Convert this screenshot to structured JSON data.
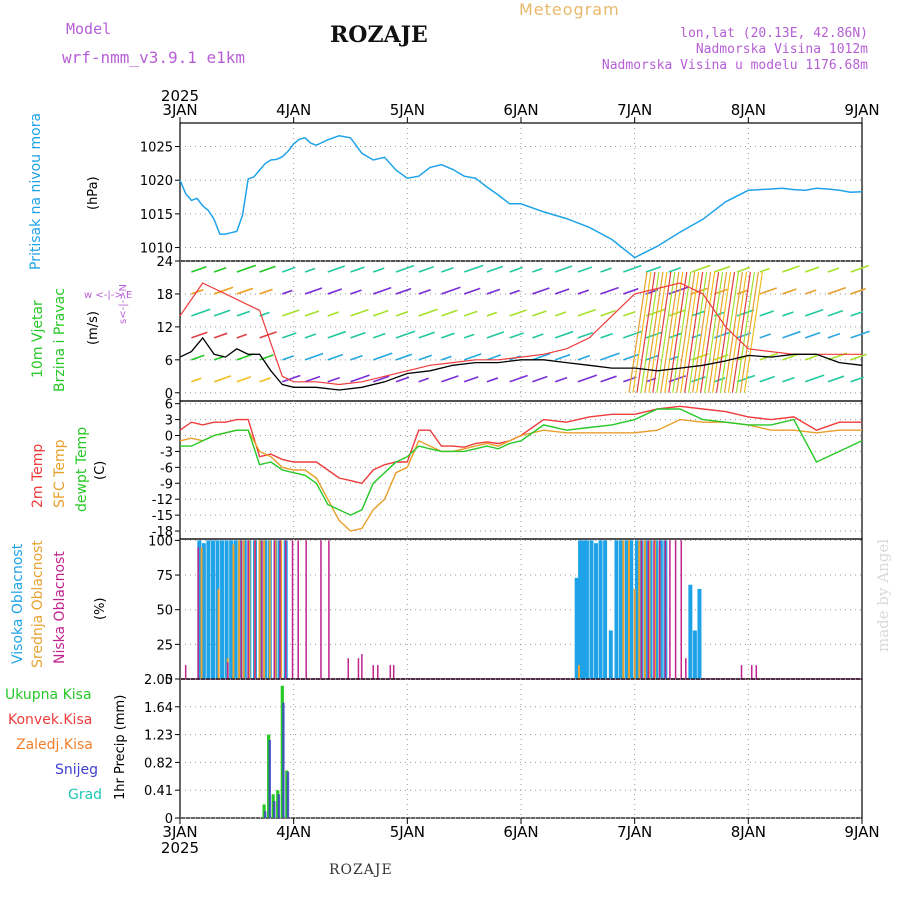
{
  "header": {
    "model_label": "Model",
    "model_name": "wrf-nmm_v3.9.1 e1km",
    "title": "ROZAJE",
    "meteogram_label": "Meteogram",
    "lonlat": "lon,lat (20.13E, 42.86N)",
    "elevation": "Nadmorska Visina 1012m",
    "model_elevation": "Nadmorska Visina u modelu 1176.68m"
  },
  "footer": {
    "station": "ROZAJE",
    "credit": "made by Angel"
  },
  "colors": {
    "pressure": "#1fa3e8",
    "temp2m": "#ee3b3b",
    "sfc": "#e89f2c",
    "dewpt": "#27c827",
    "high_cloud": "#1fa3e8",
    "mid_cloud": "#e8a232",
    "low_cloud": "#c0238e",
    "precip_total": "#27c827",
    "convective": "#ee3b3b",
    "freezing": "#f07f2c",
    "snow": "#3f3fd0",
    "graupel": "#1fc8b4",
    "wind_speed": "#000000",
    "gust": "#ee3b3b",
    "panel_labels": "#1fa3e8",
    "wind_labels": "#27c827",
    "compass": "#b65fd6"
  },
  "chart_data": [
    {
      "type": "line",
      "id": "pressure",
      "x_labels_top": [
        "3JAN",
        "4JAN",
        "5JAN",
        "6JAN",
        "7JAN",
        "8JAN",
        "9JAN"
      ],
      "top_year": "2025",
      "ylabel_rot": "Pritisak na nivou mora",
      "unit": "(hPa)",
      "ylim": [
        1008,
        1028.5
      ],
      "yticks": [
        1010,
        1015,
        1020,
        1025
      ],
      "x_days": [
        0,
        0.05,
        0.1,
        0.15,
        0.2,
        0.25,
        0.3,
        0.35,
        0.4,
        0.45,
        0.5,
        0.55,
        0.6,
        0.65,
        0.7,
        0.75,
        0.8,
        0.85,
        0.9,
        0.95,
        1.0,
        1.05,
        1.1,
        1.15,
        1.2,
        1.25,
        1.3,
        1.4,
        1.5,
        1.6,
        1.7,
        1.8,
        1.9,
        2.0,
        2.1,
        2.2,
        2.3,
        2.4,
        2.5,
        2.6,
        2.7,
        2.8,
        2.9,
        3.0,
        3.2,
        3.4,
        3.6,
        3.8,
        4.0,
        4.2,
        4.4,
        4.6,
        4.8,
        5.0,
        5.1,
        5.2,
        5.3,
        5.4,
        5.5,
        5.6,
        5.7,
        5.8,
        5.9,
        6.0
      ],
      "values": [
        1020,
        1018,
        1017,
        1017.3,
        1016.2,
        1015.5,
        1014.2,
        1012,
        1012,
        1012.2,
        1012.4,
        1014.8,
        1020.2,
        1020.5,
        1021.5,
        1022.5,
        1023,
        1023.1,
        1023.5,
        1024.3,
        1025.4,
        1026.1,
        1026.3,
        1025.5,
        1025.2,
        1025.6,
        1026,
        1026.6,
        1026.3,
        1024,
        1023,
        1023.4,
        1021.5,
        1020.3,
        1020.6,
        1021.9,
        1022.3,
        1021.6,
        1020.6,
        1020.3,
        1019,
        1017.8,
        1016.5,
        1016.5,
        1015.3,
        1014.3,
        1013,
        1011.2,
        1008.5,
        1010.2,
        1012.3,
        1014.2,
        1016.8,
        1018.5,
        1018.6,
        1018.7,
        1018.8,
        1018.6,
        1018.5,
        1018.8,
        1018.7,
        1018.5,
        1018.2,
        1018.3
      ],
      "grid": true
    },
    {
      "type": "line",
      "id": "wind",
      "ylabel_rot_1": "10m Vjetar",
      "ylabel_rot_2": "Brzina i Pravac",
      "unit": "(m/s)",
      "compass": "w <-|-> E",
      "compass_vertical": "s<-|->N",
      "ylim": [
        -1.5,
        24
      ],
      "yticks": [
        0,
        6,
        12,
        18,
        24
      ],
      "x_days": [
        0,
        0.1,
        0.2,
        0.3,
        0.4,
        0.5,
        0.6,
        0.7,
        0.8,
        0.9,
        1.0,
        1.2,
        1.4,
        1.6,
        1.8,
        2.0,
        2.2,
        2.4,
        2.6,
        2.8,
        3.0,
        3.2,
        3.4,
        3.6,
        3.8,
        4.0,
        4.2,
        4.4,
        4.6,
        4.8,
        5.0,
        5.2,
        5.4,
        5.6,
        5.8,
        6.0
      ],
      "wind_speed": [
        6.5,
        7.5,
        10,
        7,
        6.5,
        8,
        7,
        7,
        4,
        1.5,
        1,
        1,
        0.5,
        1,
        2,
        3.5,
        4,
        5,
        5.5,
        5.5,
        6,
        6,
        5.5,
        5,
        4.5,
        4.5,
        4,
        4.5,
        5,
        5.8,
        6.8,
        6.5,
        7,
        7,
        5.5,
        5
      ],
      "gust": [
        14,
        17,
        20,
        19,
        18,
        17,
        16,
        15,
        9,
        3,
        2,
        2,
        1.5,
        2,
        3,
        4,
        5,
        5.5,
        6,
        6,
        6.5,
        7,
        8,
        10,
        14,
        18,
        19,
        20,
        18,
        12,
        8,
        7.5,
        7,
        7,
        7,
        7
      ],
      "grid": true
    },
    {
      "type": "line",
      "id": "temperature",
      "ylabel_rot_1": "2m Temp",
      "ylabel_rot_2": "SFC Temp",
      "ylabel_rot_3": "dewpt Temp",
      "unit": "(C)",
      "ylim": [
        -19.5,
        6.5
      ],
      "yticks": [
        6,
        3,
        0,
        -3,
        -6,
        -9,
        -12,
        -15,
        -18
      ],
      "x_days": [
        0,
        0.1,
        0.2,
        0.3,
        0.4,
        0.5,
        0.6,
        0.7,
        0.8,
        0.9,
        1.0,
        1.1,
        1.2,
        1.3,
        1.4,
        1.5,
        1.6,
        1.7,
        1.8,
        1.9,
        2.0,
        2.1,
        2.2,
        2.3,
        2.4,
        2.5,
        2.6,
        2.7,
        2.8,
        2.9,
        3.0,
        3.2,
        3.4,
        3.6,
        3.8,
        4.0,
        4.2,
        4.4,
        4.6,
        4.8,
        5.0,
        5.2,
        5.4,
        5.6,
        5.8,
        6.0
      ],
      "temp2m": [
        1,
        2.5,
        2,
        2.5,
        2.5,
        3,
        3,
        -4,
        -3.5,
        -4.5,
        -5,
        -5,
        -5,
        -6.5,
        -8,
        -8.5,
        -9,
        -6.5,
        -5.5,
        -5,
        -5,
        1,
        1,
        -2,
        -2,
        -2.2,
        -1.5,
        -1.2,
        -1.5,
        -1,
        0,
        3,
        2.5,
        3.5,
        4,
        4,
        5,
        5.5,
        5,
        4.5,
        3.5,
        3,
        3.5,
        1,
        2.5,
        2.5
      ],
      "sfc": [
        -1,
        -0.5,
        -1,
        0,
        0.5,
        1,
        1,
        -3,
        -4,
        -6,
        -6.5,
        -6.5,
        -8,
        -12,
        -16,
        -18,
        -17.5,
        -14,
        -12,
        -7,
        -6,
        -1,
        -2,
        -3,
        -3,
        -2.5,
        -2,
        -1.5,
        -2,
        -1,
        0,
        1,
        0.5,
        0.5,
        0.5,
        0.5,
        1,
        3,
        2.5,
        2.5,
        2,
        1,
        1,
        0.5,
        1,
        1
      ],
      "dewpt": [
        -2,
        -2,
        -1,
        0,
        0.5,
        1,
        1,
        -5.5,
        -5,
        -6.5,
        -7,
        -7.5,
        -9,
        -13,
        -14,
        -15,
        -14,
        -9,
        -7,
        -5,
        -4,
        -2,
        -2.5,
        -3,
        -3,
        -3,
        -2.5,
        -2,
        -2.5,
        -1.5,
        -1,
        2,
        1,
        1.5,
        2,
        3,
        5,
        5,
        3,
        2.5,
        2,
        2,
        3,
        -5,
        -3,
        -1
      ],
      "grid": true
    },
    {
      "type": "bar",
      "id": "clouds",
      "ylabel_rot_1": "Visoka Oblacnost",
      "ylabel_rot_2": "Srednja Oblacnost",
      "ylabel_rot_3": "Niska Oblacnost",
      "unit": "(%)",
      "ylim": [
        0,
        101
      ],
      "yticks": [
        0,
        25,
        50,
        75,
        100
      ],
      "high": [
        {
          "x": 0.17,
          "v": 100
        },
        {
          "x": 0.21,
          "v": 98
        },
        {
          "x": 0.25,
          "v": 100
        },
        {
          "x": 0.29,
          "v": 100
        },
        {
          "x": 0.33,
          "v": 100
        },
        {
          "x": 0.37,
          "v": 100
        },
        {
          "x": 0.41,
          "v": 100
        },
        {
          "x": 0.45,
          "v": 100
        },
        {
          "x": 0.49,
          "v": 100
        },
        {
          "x": 0.53,
          "v": 100
        },
        {
          "x": 0.57,
          "v": 100
        },
        {
          "x": 0.61,
          "v": 100
        },
        {
          "x": 0.66,
          "v": 100
        },
        {
          "x": 0.71,
          "v": 100
        },
        {
          "x": 0.75,
          "v": 100
        },
        {
          "x": 0.79,
          "v": 100
        },
        {
          "x": 0.84,
          "v": 100
        },
        {
          "x": 0.88,
          "v": 100
        },
        {
          "x": 0.93,
          "v": 100
        },
        {
          "x": 3.49,
          "v": 73
        },
        {
          "x": 3.52,
          "v": 100
        },
        {
          "x": 3.55,
          "v": 100
        },
        {
          "x": 3.58,
          "v": 100
        },
        {
          "x": 3.62,
          "v": 100
        },
        {
          "x": 3.66,
          "v": 98
        },
        {
          "x": 3.7,
          "v": 100
        },
        {
          "x": 3.74,
          "v": 100
        },
        {
          "x": 3.79,
          "v": 35
        },
        {
          "x": 3.84,
          "v": 100
        },
        {
          "x": 3.88,
          "v": 100
        },
        {
          "x": 3.93,
          "v": 100
        },
        {
          "x": 3.97,
          "v": 100
        },
        {
          "x": 4.02,
          "v": 100
        },
        {
          "x": 4.06,
          "v": 100
        },
        {
          "x": 4.1,
          "v": 100
        },
        {
          "x": 4.14,
          "v": 100
        },
        {
          "x": 4.19,
          "v": 100
        },
        {
          "x": 4.23,
          "v": 100
        },
        {
          "x": 4.27,
          "v": 100
        },
        {
          "x": 4.49,
          "v": 68
        },
        {
          "x": 4.53,
          "v": 35
        },
        {
          "x": 4.57,
          "v": 65
        }
      ],
      "mid": [
        {
          "x": 0.19,
          "v": 95
        },
        {
          "x": 0.34,
          "v": 65
        },
        {
          "x": 0.42,
          "v": 15
        },
        {
          "x": 0.47,
          "v": 97
        },
        {
          "x": 0.52,
          "v": 100
        },
        {
          "x": 0.56,
          "v": 100
        },
        {
          "x": 0.61,
          "v": 100
        },
        {
          "x": 0.66,
          "v": 100
        },
        {
          "x": 0.7,
          "v": 100
        },
        {
          "x": 0.74,
          "v": 100
        },
        {
          "x": 0.79,
          "v": 100
        },
        {
          "x": 0.84,
          "v": 100
        },
        {
          "x": 0.89,
          "v": 100
        },
        {
          "x": 3.51,
          "v": 10
        },
        {
          "x": 3.9,
          "v": 100
        },
        {
          "x": 3.95,
          "v": 100
        },
        {
          "x": 4.0,
          "v": 65
        },
        {
          "x": 4.04,
          "v": 100
        },
        {
          "x": 4.09,
          "v": 100
        },
        {
          "x": 4.13,
          "v": 100
        },
        {
          "x": 4.18,
          "v": 100
        },
        {
          "x": 4.22,
          "v": 95
        }
      ],
      "low": [
        {
          "x": 0.05,
          "v": 10
        },
        {
          "x": 0.16,
          "v": 95
        },
        {
          "x": 0.42,
          "v": 12
        },
        {
          "x": 0.54,
          "v": 100
        },
        {
          "x": 0.6,
          "v": 100
        },
        {
          "x": 0.66,
          "v": 100
        },
        {
          "x": 0.72,
          "v": 100
        },
        {
          "x": 0.83,
          "v": 100
        },
        {
          "x": 0.88,
          "v": 100
        },
        {
          "x": 0.93,
          "v": 100
        },
        {
          "x": 0.99,
          "v": 100
        },
        {
          "x": 1.04,
          "v": 100
        },
        {
          "x": 1.11,
          "v": 100
        },
        {
          "x": 1.24,
          "v": 100
        },
        {
          "x": 1.31,
          "v": 100
        },
        {
          "x": 1.48,
          "v": 15
        },
        {
          "x": 1.57,
          "v": 15
        },
        {
          "x": 1.6,
          "v": 18
        },
        {
          "x": 1.7,
          "v": 10
        },
        {
          "x": 1.74,
          "v": 10
        },
        {
          "x": 1.85,
          "v": 10
        },
        {
          "x": 1.88,
          "v": 10
        },
        {
          "x": 4.06,
          "v": 100
        },
        {
          "x": 4.12,
          "v": 100
        },
        {
          "x": 4.17,
          "v": 100
        },
        {
          "x": 4.22,
          "v": 100
        },
        {
          "x": 4.27,
          "v": 100
        },
        {
          "x": 4.31,
          "v": 100
        },
        {
          "x": 4.36,
          "v": 100
        },
        {
          "x": 4.41,
          "v": 100
        },
        {
          "x": 4.45,
          "v": 15
        },
        {
          "x": 4.94,
          "v": 10
        },
        {
          "x": 5.03,
          "v": 10
        },
        {
          "x": 5.07,
          "v": 10
        }
      ],
      "grid": true
    },
    {
      "type": "bar",
      "id": "precip",
      "legend": [
        "Ukupna Kisa",
        "Konvek.Kisa",
        "Zaledj.Kisa",
        "Snijeg",
        "Grad"
      ],
      "ylabel_rot": "1hr Precip (mm)",
      "ylim": [
        0,
        2.05
      ],
      "yticks": [
        0,
        0.41,
        0.82,
        1.23,
        1.64,
        2.05
      ],
      "ytick_labels": [
        "0",
        "0.41",
        "0.82",
        "1.23",
        "1.64",
        "2.05"
      ],
      "bottom_labels": [
        "3JAN",
        "4JAN",
        "5JAN",
        "6JAN",
        "7JAN",
        "8JAN",
        "9JAN"
      ],
      "bottom_year": "2025",
      "total": [
        {
          "x": 0.74,
          "v": 0.2
        },
        {
          "x": 0.78,
          "v": 1.23
        },
        {
          "x": 0.82,
          "v": 0.35
        },
        {
          "x": 0.86,
          "v": 0.41
        },
        {
          "x": 0.9,
          "v": 1.95
        },
        {
          "x": 0.94,
          "v": 0.7
        }
      ],
      "snow": [
        {
          "x": 0.75,
          "v": 0.1
        },
        {
          "x": 0.79,
          "v": 1.15
        },
        {
          "x": 0.83,
          "v": 0.25
        },
        {
          "x": 0.87,
          "v": 0.35
        },
        {
          "x": 0.91,
          "v": 1.7
        },
        {
          "x": 0.95,
          "v": 0.68
        }
      ],
      "grid": true
    }
  ]
}
